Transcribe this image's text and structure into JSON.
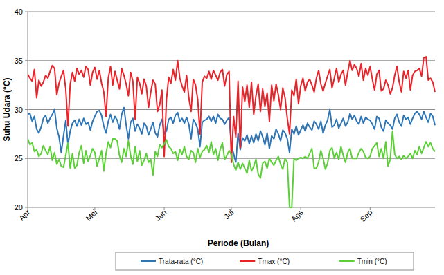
{
  "chart_data": {
    "type": "line",
    "x_label": "Periode (Bulan)",
    "y_label": "Suhu Udara (°C)",
    "ylim": [
      20,
      40
    ],
    "yticks": [
      20,
      25,
      30,
      35,
      40
    ],
    "grid": true,
    "legend": "bottom",
    "categories": [
      "Apr",
      null,
      null,
      null,
      null,
      null,
      null,
      null,
      null,
      null,
      null,
      null,
      null,
      null,
      null,
      null,
      null,
      null,
      null,
      null,
      null,
      null,
      null,
      null,
      null,
      null,
      null,
      null,
      null,
      null,
      "Mei",
      null,
      null,
      null,
      null,
      null,
      null,
      null,
      null,
      null,
      null,
      null,
      null,
      null,
      null,
      null,
      null,
      null,
      null,
      null,
      null,
      null,
      null,
      null,
      null,
      null,
      null,
      null,
      null,
      null,
      null,
      "Jun",
      null,
      null,
      null,
      null,
      null,
      null,
      null,
      null,
      null,
      null,
      null,
      null,
      null,
      null,
      null,
      null,
      null,
      null,
      null,
      null,
      null,
      null,
      null,
      null,
      null,
      null,
      null,
      null,
      null,
      "Jul",
      null,
      null,
      null,
      null,
      null,
      null,
      null,
      null,
      null,
      null,
      null,
      null,
      null,
      null,
      null,
      null,
      null,
      null,
      null,
      null,
      null,
      null,
      null,
      null,
      null,
      null,
      null,
      null,
      null,
      null,
      "Ags",
      null,
      null,
      null,
      null,
      null,
      null,
      null,
      null,
      null,
      null,
      null,
      null,
      null,
      null,
      null,
      null,
      null,
      null,
      null,
      null,
      null,
      null,
      null,
      null,
      null,
      null,
      null,
      null,
      null,
      null,
      "Sep",
      null,
      null,
      null,
      null,
      null,
      null,
      null,
      null,
      null,
      null,
      null,
      null,
      null,
      null,
      null,
      null,
      null,
      null,
      null,
      null,
      null,
      null,
      null,
      null,
      null,
      null,
      null,
      null,
      null
    ],
    "series": [
      {
        "name": "Trata-rata (°C)",
        "color": "#2e75b6",
        "values": [
          29.5,
          29.6,
          28.8,
          29.3,
          28.0,
          27.6,
          28.2,
          29.1,
          29.4,
          28.6,
          29.1,
          29.5,
          30.0,
          28.1,
          27.2,
          25.6,
          27.3,
          28.9,
          26.4,
          27.8,
          28.6,
          28.9,
          28.3,
          29.0,
          28.4,
          29.1,
          28.5,
          28.7,
          27.9,
          28.8,
          29.3,
          29.8,
          29.9,
          29.4,
          28.3,
          27.6,
          28.8,
          29.5,
          28.7,
          29.3,
          28.9,
          28.0,
          29.5,
          30.2,
          28.4,
          27.0,
          28.7,
          29.1,
          27.8,
          28.5,
          28.1,
          27.5,
          28.6,
          28.3,
          27.4,
          28.0,
          28.7,
          27.6,
          27.2,
          28.4,
          29.0,
          27.5,
          27.8,
          29.0,
          29.2,
          28.6,
          29.4,
          29.7,
          28.8,
          29.1,
          28.6,
          29.2,
          28.5,
          27.0,
          29.0,
          28.6,
          28.0,
          26.2,
          28.7,
          28.9,
          29.0,
          29.3,
          28.8,
          29.3,
          28.6,
          29.5,
          29.1,
          29.0,
          28.5,
          28.9,
          29.2,
          26.3,
          25.5,
          24.6,
          27.6,
          25.9,
          27.1,
          26.8,
          27.4,
          26.5,
          27.3,
          26.6,
          27.5,
          26.8,
          27.8,
          27.2,
          26.4,
          27.6,
          26.0,
          27.3,
          27.0,
          28.0,
          27.5,
          26.8,
          27.9,
          27.6,
          27.0,
          25.6,
          28.0,
          27.5,
          28.3,
          27.4,
          27.9,
          28.4,
          27.8,
          28.6,
          28.2,
          27.9,
          28.8,
          28.5,
          28.0,
          28.8,
          27.6,
          28.4,
          28.9,
          30.0,
          28.2,
          28.4,
          29.0,
          28.1,
          28.6,
          29.1,
          28.3,
          28.7,
          29.6,
          29.0,
          29.4,
          28.8,
          28.5,
          29.3,
          28.6,
          29.2,
          29.0,
          28.9,
          28.5,
          28.0,
          29.3,
          29.1,
          28.2,
          27.8,
          28.9,
          28.6,
          28.4,
          28.0,
          29.1,
          29.5,
          28.7,
          28.3,
          29.4,
          29.0,
          29.2,
          28.5,
          29.1,
          29.6,
          29.8,
          29.5,
          29.0,
          29.8,
          29.2,
          28.7,
          29.6,
          29.3,
          28.4
        ]
      },
      {
        "name": "Tmax (°C)",
        "color": "#e8242a",
        "values": [
          33.6,
          33.2,
          32.9,
          34.1,
          31.2,
          33.0,
          32.4,
          32.8,
          33.5,
          33.2,
          33.9,
          34.5,
          34.2,
          31.5,
          32.7,
          33.4,
          34.0,
          32.1,
          28.3,
          32.6,
          33.8,
          32.9,
          34.2,
          33.6,
          34.0,
          33.3,
          34.4,
          34.1,
          32.5,
          33.8,
          34.3,
          33.1,
          34.0,
          32.7,
          31.8,
          29.3,
          33.2,
          34.4,
          32.5,
          33.9,
          33.0,
          32.1,
          34.2,
          33.5,
          32.6,
          31.4,
          33.8,
          32.9,
          29.0,
          33.3,
          32.7,
          31.6,
          33.1,
          32.4,
          30.2,
          31.8,
          33.0,
          32.6,
          29.8,
          30.5,
          32.0,
          25.2,
          31.0,
          33.3,
          32.7,
          34.1,
          33.0,
          35.0,
          33.2,
          32.4,
          31.8,
          33.5,
          31.2,
          29.8,
          33.1,
          32.5,
          31.0,
          27.5,
          32.8,
          33.4,
          33.2,
          33.9,
          33.1,
          34.0,
          33.5,
          33.0,
          33.8,
          34.1,
          32.4,
          33.6,
          33.9,
          24.6,
          29.3,
          27.2,
          32.9,
          26.1,
          32.3,
          30.8,
          32.5,
          30.2,
          32.8,
          29.5,
          31.4,
          32.6,
          29.8,
          32.1,
          30.3,
          31.7,
          28.8,
          32.5,
          30.9,
          32.6,
          31.5,
          30.0,
          32.2,
          31.2,
          29.1,
          27.5,
          32.0,
          31.4,
          33.1,
          30.6,
          32.4,
          33.2,
          31.9,
          32.8,
          33.1,
          32.5,
          31.8,
          33.2,
          34.0,
          32.6,
          31.9,
          32.7,
          33.4,
          34.1,
          32.2,
          33.2,
          34.2,
          32.8,
          33.6,
          34.0,
          32.5,
          33.8,
          35.0,
          34.0,
          34.6,
          34.2,
          33.4,
          34.7,
          33.0,
          34.2,
          33.5,
          34.4,
          33.1,
          32.0,
          33.6,
          34.0,
          31.9,
          32.1,
          33.0,
          32.5,
          31.6,
          32.2,
          33.5,
          34.4,
          32.8,
          31.8,
          33.9,
          33.2,
          34.0,
          32.0,
          33.5,
          33.9,
          34.0,
          34.2,
          33.4,
          35.3,
          35.4,
          33.0,
          33.2,
          32.8,
          31.8
        ]
      },
      {
        "name": "Tmin (°C)",
        "color": "#5ccf38",
        "values": [
          27.0,
          26.4,
          26.6,
          25.7,
          25.9,
          25.2,
          25.5,
          26.3,
          25.8,
          25.4,
          26.2,
          24.8,
          25.6,
          24.4,
          24.9,
          24.2,
          24.1,
          25.3,
          26.6,
          24.0,
          25.5,
          24.0,
          24.3,
          25.6,
          26.3,
          24.5,
          25.8,
          24.7,
          25.3,
          26.0,
          25.6,
          24.2,
          25.0,
          25.8,
          23.7,
          25.5,
          26.7,
          26.1,
          27.0,
          27.0,
          26.8,
          25.3,
          24.6,
          26.0,
          25.2,
          26.8,
          25.3,
          24.4,
          26.2,
          24.7,
          25.8,
          24.3,
          24.8,
          25.5,
          24.6,
          24.9,
          23.3,
          25.7,
          25.2,
          26.4,
          26.1,
          26.5,
          26.9,
          26.2,
          26.0,
          25.5,
          25.7,
          24.8,
          25.9,
          25.4,
          26.2,
          25.2,
          24.9,
          25.8,
          25.6,
          24.6,
          26.0,
          25.1,
          25.7,
          25.9,
          26.3,
          25.6,
          26.7,
          25.4,
          26.0,
          24.8,
          25.9,
          26.6,
          24.9,
          25.3,
          25.8,
          25.4,
          24.4,
          23.8,
          24.6,
          23.9,
          24.5,
          24.0,
          23.5,
          24.8,
          23.7,
          24.2,
          24.9,
          23.4,
          23.0,
          24.5,
          24.7,
          24.0,
          25.0,
          24.6,
          24.3,
          24.8,
          25.2,
          24.4,
          23.9,
          25.0,
          24.6,
          20.0,
          20.0,
          25.0,
          24.8,
          25.0,
          25.1,
          25.0,
          25.2,
          25.0,
          25.5,
          26.0,
          24.0,
          24.0,
          24.6,
          25.8,
          25.0,
          23.9,
          24.5,
          25.8,
          26.1,
          25.0,
          25.6,
          24.9,
          26.2,
          25.3,
          24.6,
          25.6,
          26.0,
          25.0,
          25.0,
          25.0,
          25.6,
          26.0,
          25.7,
          25.1,
          25.0,
          25.2,
          26.0,
          26.3,
          26.6,
          25.2,
          26.0,
          25.0,
          26.7,
          24.2,
          24.9,
          27.8,
          25.4,
          25.0,
          25.2,
          24.9,
          25.3,
          25.0,
          25.2,
          25.5,
          25.0,
          25.8,
          25.4,
          26.2,
          25.5,
          26.1,
          26.7,
          26.2,
          26.6,
          26.0,
          25.7
        ]
      }
    ]
  }
}
